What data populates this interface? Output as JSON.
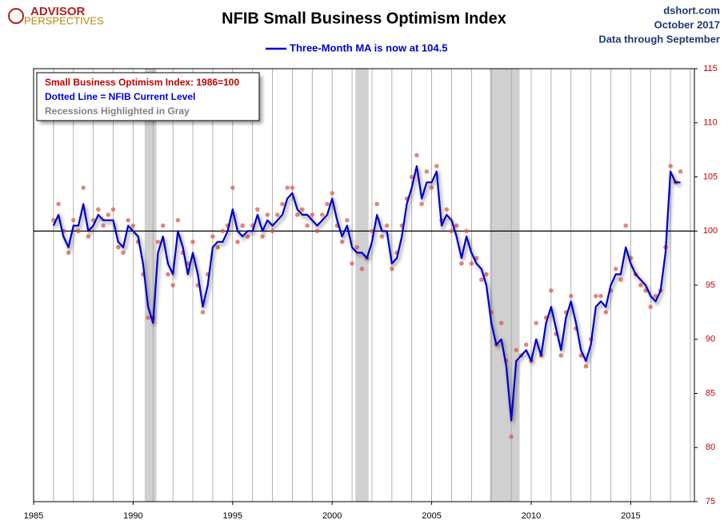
{
  "chart_data": {
    "type": "line",
    "title": "NFIB Small Business Optimism Index",
    "logo": [
      "ADVISOR",
      "PERSPECTIVES"
    ],
    "source_lines": [
      "dshort.com",
      "October 2017",
      "Data through September"
    ],
    "annotations": [
      {
        "text": "Small Business Optimism Index: 1986=100",
        "color": "#c00000"
      },
      {
        "text": "Dotted Line = NFIB Current Level",
        "color": "#0000e0"
      },
      {
        "text": "Recessions Highlighted in Gray",
        "color": "#808080"
      }
    ],
    "recessions": [
      [
        1990.58,
        1991.17
      ],
      [
        2001.17,
        2001.83
      ],
      [
        2007.92,
        2009.42
      ]
    ],
    "reference_line": 100,
    "xlim": [
      1985,
      2018.2
    ],
    "xticks": [
      1985,
      1990,
      1995,
      2000,
      2005,
      2010,
      2015
    ],
    "ylim": [
      75,
      115
    ],
    "yticks": [
      75,
      80,
      85,
      90,
      95,
      100,
      105,
      110,
      115
    ],
    "x": [
      1986,
      1986.25,
      1986.5,
      1986.75,
      1987,
      1987.25,
      1987.5,
      1987.75,
      1988,
      1988.25,
      1988.5,
      1988.75,
      1989,
      1989.25,
      1989.5,
      1989.75,
      1990,
      1990.25,
      1990.5,
      1990.75,
      1991,
      1991.25,
      1991.5,
      1991.75,
      1992,
      1992.25,
      1992.5,
      1992.75,
      1993,
      1993.25,
      1993.5,
      1993.75,
      1994,
      1994.25,
      1994.5,
      1994.75,
      1995,
      1995.25,
      1995.5,
      1995.75,
      1996,
      1996.25,
      1996.5,
      1996.75,
      1997,
      1997.25,
      1997.5,
      1997.75,
      1998,
      1998.25,
      1998.5,
      1998.75,
      1999,
      1999.25,
      1999.5,
      1999.75,
      2000,
      2000.25,
      2000.5,
      2000.75,
      2001,
      2001.25,
      2001.5,
      2001.75,
      2002,
      2002.25,
      2002.5,
      2002.75,
      2003,
      2003.25,
      2003.5,
      2003.75,
      2004,
      2004.25,
      2004.5,
      2004.75,
      2005,
      2005.25,
      2005.5,
      2005.75,
      2006,
      2006.25,
      2006.5,
      2006.75,
      2007,
      2007.25,
      2007.5,
      2007.75,
      2008,
      2008.25,
      2008.5,
      2008.75,
      2009,
      2009.25,
      2009.5,
      2009.75,
      2010,
      2010.25,
      2010.5,
      2010.75,
      2011,
      2011.25,
      2011.5,
      2011.75,
      2012,
      2012.25,
      2012.5,
      2012.75,
      2013,
      2013.25,
      2013.5,
      2013.75,
      2014,
      2014.25,
      2014.5,
      2014.75,
      2015,
      2015.25,
      2015.5,
      2015.75,
      2016,
      2016.25,
      2016.5,
      2016.75,
      2017,
      2017.25,
      2017.5
    ],
    "series": [
      {
        "name": "Three-Month MA is now at 104.5",
        "color": "#0000cc",
        "style": "line",
        "values": [
          100.5,
          101.5,
          99.5,
          98.5,
          100.5,
          100.5,
          102.5,
          100,
          100.5,
          101.5,
          101,
          101,
          101,
          99,
          98.5,
          100.5,
          100,
          99.5,
          97,
          93,
          91.5,
          98,
          99.5,
          97,
          96,
          100,
          98.5,
          96,
          98,
          96,
          93,
          95,
          98.5,
          99,
          99,
          100,
          102,
          100,
          99.5,
          100,
          100,
          101.5,
          100,
          101,
          100.5,
          101,
          101.5,
          103,
          103.5,
          102,
          101.5,
          101.5,
          101,
          100.5,
          101,
          101.5,
          103,
          101,
          99.5,
          100.5,
          98.5,
          98,
          98,
          97.5,
          99,
          101.5,
          100,
          100,
          97,
          97.5,
          99.5,
          102.5,
          104,
          106,
          103,
          104.5,
          104.5,
          105.5,
          100.5,
          101.5,
          101,
          99.5,
          97.5,
          99.5,
          98,
          97,
          96.5,
          95,
          91.5,
          89.5,
          90,
          87.5,
          82.5,
          88,
          88.5,
          89,
          88,
          90,
          88.5,
          91.5,
          93,
          91,
          89,
          92,
          93.5,
          91.5,
          89,
          88,
          89.5,
          93,
          93.5,
          93,
          95,
          96,
          96,
          98.5,
          97,
          96,
          95.5,
          95,
          94,
          93.5,
          94.5,
          98,
          105.5,
          104.5,
          104.5
        ]
      },
      {
        "color": "#d9534f",
        "style": "dots",
        "values": [
          101,
          102.5,
          100,
          98,
          101,
          100,
          104,
          99.5,
          101,
          102,
          100.5,
          101.5,
          102,
          98.5,
          98,
          101,
          100.5,
          99,
          96,
          92,
          92,
          99,
          100.5,
          96,
          95,
          101,
          98,
          97,
          99,
          95,
          92.5,
          96,
          99.5,
          98.5,
          100,
          100.5,
          104,
          99,
          100.5,
          99.5,
          100.5,
          102,
          99.5,
          101.5,
          100,
          101.5,
          102.5,
          104,
          104,
          101.5,
          102,
          100.5,
          101.5,
          100,
          101.5,
          102.5,
          103.5,
          100.5,
          99,
          101,
          97,
          98.5,
          96.5,
          97.5,
          100,
          102.5,
          99.5,
          100.5,
          96.5,
          98,
          100.5,
          103,
          105,
          107,
          102.5,
          105.5,
          104,
          106,
          101,
          102,
          100,
          100.5,
          97,
          100,
          97,
          97.5,
          95.5,
          96,
          92.5,
          89.5,
          91.5,
          88,
          81,
          89,
          88.5,
          89.5,
          88,
          91.5,
          88.5,
          92,
          94.5,
          90.5,
          88.5,
          92.5,
          94,
          91,
          88.5,
          87.5,
          90,
          94,
          94,
          92.5,
          94.5,
          96.5,
          95.5,
          100.5,
          97.5,
          96,
          95,
          94.5,
          93,
          94,
          94.5,
          98.5,
          106,
          104.5,
          105.5
        ]
      }
    ]
  }
}
